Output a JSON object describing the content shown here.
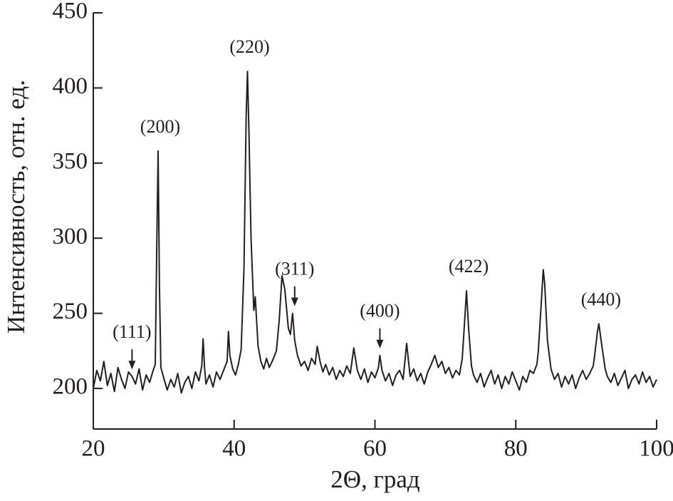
{
  "chart_data": {
    "type": "line",
    "x_label": "2Θ, град",
    "y_label": "Интенсивность, отн. ед.",
    "color": "#231f20",
    "xlim": [
      20,
      100
    ],
    "xticks": [
      20,
      40,
      60,
      80,
      100
    ],
    "ylim": [
      173,
      450
    ],
    "yticks": [
      200,
      250,
      300,
      350,
      400,
      450
    ],
    "x": [
      20,
      20.5,
      21,
      21.5,
      22,
      22.5,
      23,
      23.5,
      24,
      24.5,
      25,
      25.5,
      26,
      26.5,
      27,
      27.5,
      28,
      28.5,
      28.8,
      29,
      29.2,
      29.4,
      29.6,
      30,
      30.5,
      31,
      31.5,
      32,
      32.5,
      33,
      33.5,
      34,
      34.5,
      35,
      35.4,
      35.6,
      35.8,
      36,
      36.5,
      37,
      37.5,
      38,
      38.5,
      39,
      39.2,
      39.4,
      39.8,
      40.2,
      40.6,
      41,
      41.4,
      41.7,
      41.9,
      42.1,
      42.4,
      42.8,
      43,
      43.4,
      43.8,
      44.2,
      44.6,
      45,
      45.5,
      46,
      46.4,
      46.8,
      47.2,
      47.7,
      48,
      48.3,
      48.6,
      49,
      49.5,
      50,
      50.5,
      51,
      51.5,
      51.8,
      52.2,
      52.6,
      53,
      53.5,
      54,
      54.5,
      55,
      55.5,
      56,
      56.5,
      57,
      57.5,
      58,
      58.5,
      59,
      59.5,
      60,
      60.5,
      60.7,
      61,
      61.5,
      62,
      62.5,
      63,
      63.5,
      64,
      64.5,
      65,
      65.5,
      66,
      66.5,
      67,
      67.5,
      68,
      68.5,
      69,
      69.5,
      70,
      70.5,
      71,
      71.5,
      72,
      72.4,
      72.8,
      73,
      73.3,
      73.7,
      74,
      74.5,
      75,
      75.5,
      76,
      76.5,
      77,
      77.5,
      78,
      78.5,
      79,
      79.5,
      80,
      80.5,
      81,
      81.5,
      82,
      82.5,
      83,
      83.2,
      83.6,
      83.9,
      84.1,
      84.5,
      85,
      85.5,
      86,
      86.5,
      87,
      87.5,
      88,
      88.5,
      89,
      89.5,
      90,
      90.5,
      91,
      91.2,
      91.6,
      91.8,
      92.2,
      92.7,
      93,
      93.5,
      94,
      94.5,
      95,
      95.5,
      96,
      96.5,
      97,
      97.5,
      98,
      98.5,
      99,
      99.5,
      100
    ],
    "values": [
      200,
      212,
      205,
      218,
      202,
      210,
      198,
      214,
      206,
      200,
      211,
      208,
      203,
      213,
      199,
      209,
      204,
      212,
      216,
      290,
      358,
      268,
      214,
      207,
      199,
      206,
      201,
      210,
      197,
      204,
      208,
      200,
      211,
      205,
      215,
      233,
      214,
      203,
      209,
      201,
      211,
      206,
      212,
      218,
      238,
      222,
      213,
      209,
      216,
      226,
      280,
      380,
      411,
      372,
      300,
      252,
      261,
      228,
      218,
      213,
      220,
      214,
      219,
      225,
      245,
      275,
      266,
      240,
      236,
      250,
      232,
      222,
      215,
      218,
      212,
      220,
      216,
      228,
      218,
      211,
      216,
      209,
      214,
      206,
      212,
      208,
      215,
      210,
      227,
      212,
      206,
      213,
      204,
      211,
      207,
      214,
      222,
      212,
      205,
      210,
      202,
      209,
      212,
      206,
      230,
      208,
      213,
      205,
      210,
      203,
      211,
      216,
      222,
      214,
      218,
      210,
      214,
      207,
      212,
      209,
      220,
      250,
      265,
      240,
      215,
      209,
      204,
      210,
      201,
      207,
      212,
      203,
      209,
      200,
      208,
      203,
      211,
      205,
      199,
      208,
      204,
      212,
      210,
      216,
      225,
      255,
      279,
      270,
      232,
      213,
      206,
      210,
      201,
      208,
      203,
      209,
      200,
      207,
      212,
      206,
      210,
      215,
      222,
      238,
      243,
      229,
      213,
      208,
      204,
      210,
      202,
      207,
      212,
      200,
      206,
      209,
      203,
      211,
      204,
      208,
      201,
      206
    ],
    "annotations": [
      {
        "text": "(111)",
        "x": 25.5,
        "arrow": true
      },
      {
        "text": "(200)",
        "x": 29.2,
        "arrow": false
      },
      {
        "text": "(220)",
        "x": 41.9,
        "arrow": false
      },
      {
        "text": "(311)",
        "x": 48.6,
        "arrow": true
      },
      {
        "text": "(400)",
        "x": 60.7,
        "arrow": true
      },
      {
        "text": "(422)",
        "x": 73,
        "arrow": false
      },
      {
        "text": "(440)",
        "x": 91.8,
        "arrow": false
      }
    ]
  }
}
